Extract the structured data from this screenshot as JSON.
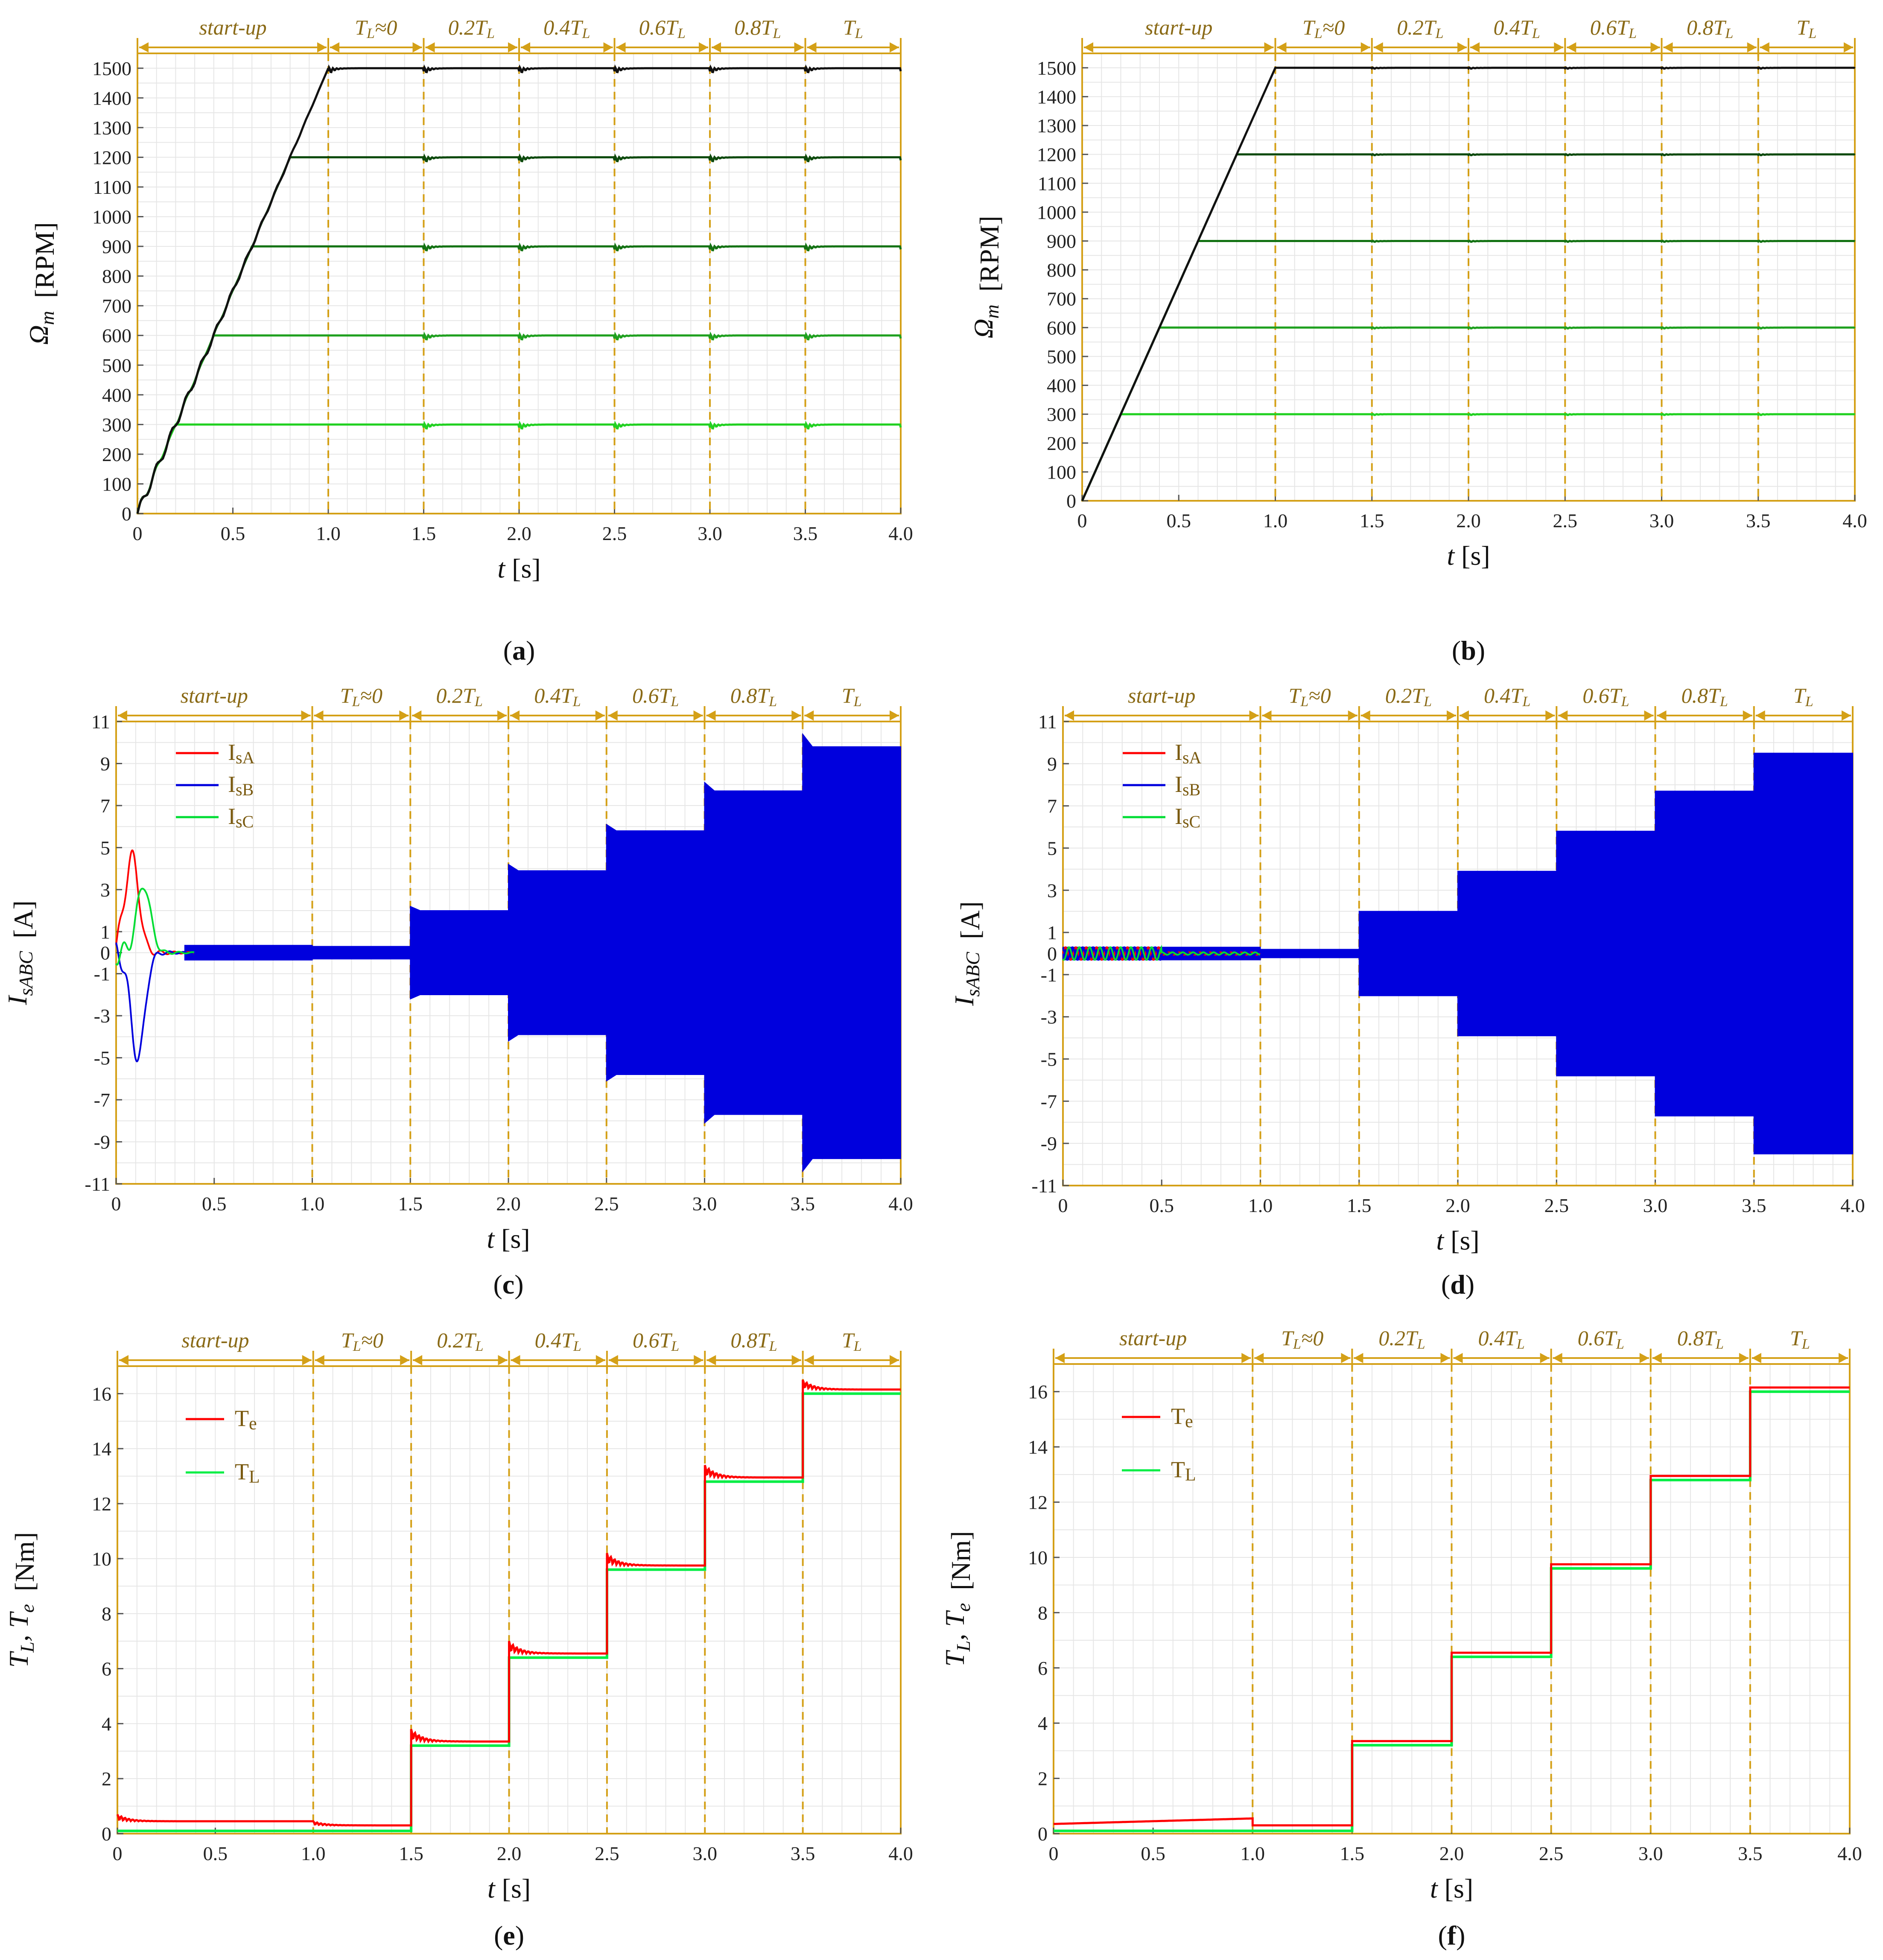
{
  "figure": {
    "phase_color": "#D4A017",
    "grid_color": "#e6e6e6"
  },
  "chart_data": [
    {
      "id": "a",
      "caption_letter": "a",
      "type": "line",
      "title": "",
      "xlabel": "t [s]",
      "ylabel": "Ω_m [RPM]",
      "xlim": [
        0,
        4.0
      ],
      "ylim": [
        0,
        1550
      ],
      "xticks": [
        "0",
        "0.5",
        "1.0",
        "1.5",
        "2.0",
        "2.5",
        "3.0",
        "3.5",
        "4.0"
      ],
      "yticks": [
        "0",
        "100",
        "200",
        "300",
        "400",
        "500",
        "600",
        "700",
        "800",
        "900",
        "1000",
        "1100",
        "1200",
        "1300",
        "1400",
        "1500"
      ],
      "phases": [
        {
          "label": "start-up",
          "x0": 0.0,
          "x1": 1.0
        },
        {
          "label": "TL≈0",
          "x0": 1.0,
          "x1": 1.5
        },
        {
          "label": "0.2TL",
          "x0": 1.5,
          "x1": 2.0
        },
        {
          "label": "0.4TL",
          "x0": 2.0,
          "x1": 2.5
        },
        {
          "label": "0.6TL",
          "x0": 2.5,
          "x1": 3.0
        },
        {
          "label": "0.8TL",
          "x0": 3.0,
          "x1": 3.5
        },
        {
          "label": "TL",
          "x0": 3.5,
          "x1": 4.0
        }
      ],
      "series": [
        {
          "name": "300 RPM",
          "setpoint": 300,
          "ramp_end": 0.2,
          "color": "#22d122"
        },
        {
          "name": "600 RPM",
          "setpoint": 600,
          "ramp_end": 0.4,
          "color": "#1fa01f"
        },
        {
          "name": "900 RPM",
          "setpoint": 900,
          "ramp_end": 0.6,
          "color": "#137213"
        },
        {
          "name": "1200 RPM",
          "setpoint": 1200,
          "ramp_end": 0.8,
          "color": "#0d4a0d"
        },
        {
          "name": "1500 RPM",
          "setpoint": 1500,
          "ramp_end": 1.0,
          "color": "#111111"
        }
      ]
    },
    {
      "id": "b",
      "caption_letter": "b",
      "type": "line",
      "title": "",
      "xlabel": "t [s]",
      "ylabel": "Ω_m [RPM]",
      "xlim": [
        0,
        4.0
      ],
      "ylim": [
        0,
        1550
      ],
      "xticks": [
        "0",
        "0.5",
        "1.0",
        "1.5",
        "2.0",
        "2.5",
        "3.0",
        "3.5",
        "4.0"
      ],
      "yticks": [
        "0",
        "100",
        "200",
        "300",
        "400",
        "500",
        "600",
        "700",
        "800",
        "900",
        "1000",
        "1100",
        "1200",
        "1300",
        "1400",
        "1500"
      ],
      "phases": [
        {
          "label": "start-up",
          "x0": 0.0,
          "x1": 1.0
        },
        {
          "label": "TL≈0",
          "x0": 1.0,
          "x1": 1.5
        },
        {
          "label": "0.2TL",
          "x0": 1.5,
          "x1": 2.0
        },
        {
          "label": "0.4TL",
          "x0": 2.0,
          "x1": 2.5
        },
        {
          "label": "0.6TL",
          "x0": 2.5,
          "x1": 3.0
        },
        {
          "label": "0.8TL",
          "x0": 3.0,
          "x1": 3.5
        },
        {
          "label": "TL",
          "x0": 3.5,
          "x1": 4.0
        }
      ],
      "series": [
        {
          "name": "300 RPM",
          "setpoint": 300,
          "ramp_end": 0.2,
          "color": "#22d122"
        },
        {
          "name": "600 RPM",
          "setpoint": 600,
          "ramp_end": 0.4,
          "color": "#1fa01f"
        },
        {
          "name": "900 RPM",
          "setpoint": 900,
          "ramp_end": 0.6,
          "color": "#137213"
        },
        {
          "name": "1200 RPM",
          "setpoint": 1200,
          "ramp_end": 0.8,
          "color": "#0d4a0d"
        },
        {
          "name": "1500 RPM",
          "setpoint": 1500,
          "ramp_end": 1.0,
          "color": "#111111"
        }
      ]
    },
    {
      "id": "c",
      "caption_letter": "c",
      "type": "line",
      "title": "",
      "xlabel": "t [s]",
      "ylabel": "I_sABC [A]",
      "xlim": [
        0,
        4.0
      ],
      "ylim": [
        -11,
        11
      ],
      "xticks": [
        "0",
        "0.5",
        "1.0",
        "1.5",
        "2.0",
        "2.5",
        "3.0",
        "3.5",
        "4.0"
      ],
      "yticks": [
        "11",
        "9",
        "7",
        "5",
        "3",
        "1",
        "0",
        "-1",
        "-3",
        "-5",
        "-7",
        "-9",
        "-11"
      ],
      "legend": [
        {
          "label": "IsA",
          "color": "#ff0000"
        },
        {
          "label": "IsB",
          "color": "#0000dd"
        },
        {
          "label": "IsC",
          "color": "#00dd33"
        }
      ],
      "phases": [
        {
          "label": "start-up",
          "x0": 0.0,
          "x1": 1.0
        },
        {
          "label": "TL≈0",
          "x0": 1.0,
          "x1": 1.5
        },
        {
          "label": "0.2TL",
          "x0": 1.5,
          "x1": 2.0
        },
        {
          "label": "0.4TL",
          "x0": 2.0,
          "x1": 2.5
        },
        {
          "label": "0.6TL",
          "x0": 2.5,
          "x1": 3.0
        },
        {
          "label": "0.8TL",
          "x0": 3.0,
          "x1": 3.5
        },
        {
          "label": "TL",
          "x0": 3.5,
          "x1": 4.0
        }
      ],
      "envelope": [
        {
          "x0": 0.35,
          "x1": 1.0,
          "amp": 0.35
        },
        {
          "x0": 1.0,
          "x1": 1.5,
          "amp": 0.3
        },
        {
          "x0": 1.5,
          "x1": 2.0,
          "amp": 2.0
        },
        {
          "x0": 2.0,
          "x1": 2.5,
          "amp": 3.9
        },
        {
          "x0": 2.5,
          "x1": 3.0,
          "amp": 5.8
        },
        {
          "x0": 3.0,
          "x1": 3.5,
          "amp": 7.7
        },
        {
          "x0": 3.5,
          "x1": 4.0,
          "amp": 9.8
        }
      ],
      "overshoot": [
        2.2,
        4.2,
        6.1,
        8.1,
        10.4
      ],
      "startup_peaks": {
        "IsA": 4.6,
        "IsB": -5.0,
        "IsC": 3.2
      }
    },
    {
      "id": "d",
      "caption_letter": "d",
      "type": "line",
      "title": "",
      "xlabel": "t [s]",
      "ylabel": "I_sABC [A]",
      "xlim": [
        0,
        4.0
      ],
      "ylim": [
        -11,
        11
      ],
      "xticks": [
        "0",
        "0.5",
        "1.0",
        "1.5",
        "2.0",
        "2.5",
        "3.0",
        "3.5",
        "4.0"
      ],
      "yticks": [
        "11",
        "9",
        "7",
        "5",
        "3",
        "1",
        "0",
        "-1",
        "-3",
        "-5",
        "-7",
        "-9",
        "-11"
      ],
      "legend": [
        {
          "label": "IsA",
          "color": "#ff0000"
        },
        {
          "label": "IsB",
          "color": "#0000dd"
        },
        {
          "label": "IsC",
          "color": "#00dd33"
        }
      ],
      "phases": [
        {
          "label": "start-up",
          "x0": 0.0,
          "x1": 1.0
        },
        {
          "label": "TL≈0",
          "x0": 1.0,
          "x1": 1.5
        },
        {
          "label": "0.2TL",
          "x0": 1.5,
          "x1": 2.0
        },
        {
          "label": "0.4TL",
          "x0": 2.0,
          "x1": 2.5
        },
        {
          "label": "0.6TL",
          "x0": 2.5,
          "x1": 3.0
        },
        {
          "label": "0.8TL",
          "x0": 3.0,
          "x1": 3.5
        },
        {
          "label": "TL",
          "x0": 3.5,
          "x1": 4.0
        }
      ],
      "envelope": [
        {
          "x0": 0.0,
          "x1": 1.0,
          "amp": 0.3
        },
        {
          "x0": 1.0,
          "x1": 1.5,
          "amp": 0.2
        },
        {
          "x0": 1.5,
          "x1": 2.0,
          "amp": 2.0
        },
        {
          "x0": 2.0,
          "x1": 2.5,
          "amp": 3.9
        },
        {
          "x0": 2.5,
          "x1": 3.0,
          "amp": 5.8
        },
        {
          "x0": 3.0,
          "x1": 3.5,
          "amp": 7.7
        },
        {
          "x0": 3.5,
          "x1": 4.0,
          "amp": 9.5
        }
      ]
    },
    {
      "id": "e",
      "caption_letter": "e",
      "type": "line",
      "title": "",
      "xlabel": "t [s]",
      "ylabel": "T_L, T_e [Nm]",
      "xlim": [
        0,
        4.0
      ],
      "ylim": [
        0,
        17
      ],
      "xticks": [
        "0",
        "0.5",
        "1.0",
        "1.5",
        "2.0",
        "2.5",
        "3.0",
        "3.5",
        "4.0"
      ],
      "yticks": [
        "0",
        "2",
        "4",
        "6",
        "8",
        "10",
        "12",
        "14",
        "16"
      ],
      "legend": [
        {
          "label": "Te",
          "color": "#ff0000"
        },
        {
          "label": "TL",
          "color": "#00ee44"
        }
      ],
      "phases": [
        {
          "label": "start-up",
          "x0": 0.0,
          "x1": 1.0
        },
        {
          "label": "TL≈0",
          "x0": 1.0,
          "x1": 1.5
        },
        {
          "label": "0.2TL",
          "x0": 1.5,
          "x1": 2.0
        },
        {
          "label": "0.4TL",
          "x0": 2.0,
          "x1": 2.5
        },
        {
          "label": "0.6TL",
          "x0": 2.5,
          "x1": 3.0
        },
        {
          "label": "0.8TL",
          "x0": 3.0,
          "x1": 3.5
        },
        {
          "label": "TL",
          "x0": 3.5,
          "x1": 4.0
        }
      ],
      "TL_levels": [
        0.1,
        0.1,
        3.2,
        6.4,
        9.6,
        12.8,
        16.0
      ],
      "Te_levels": [
        0.45,
        0.3,
        3.35,
        6.55,
        9.75,
        12.95,
        16.15
      ],
      "Te_peaks": [
        0.7,
        0.45,
        3.8,
        7.0,
        10.2,
        13.4,
        16.5
      ]
    },
    {
      "id": "f",
      "caption_letter": "f",
      "type": "line",
      "title": "",
      "xlabel": "t [s]",
      "ylabel": "T_L, T_e [Nm]",
      "xlim": [
        0,
        4.0
      ],
      "ylim": [
        0,
        17
      ],
      "xticks": [
        "0",
        "0.5",
        "1.0",
        "1.5",
        "2.0",
        "2.5",
        "3.0",
        "3.5",
        "4.0"
      ],
      "yticks": [
        "0",
        "2",
        "4",
        "6",
        "8",
        "10",
        "12",
        "14",
        "16"
      ],
      "legend": [
        {
          "label": "Te",
          "color": "#ff0000"
        },
        {
          "label": "TL",
          "color": "#00ee44"
        }
      ],
      "phases": [
        {
          "label": "start-up",
          "x0": 0.0,
          "x1": 1.0
        },
        {
          "label": "TL≈0",
          "x0": 1.0,
          "x1": 1.5
        },
        {
          "label": "0.2TL",
          "x0": 1.5,
          "x1": 2.0
        },
        {
          "label": "0.4TL",
          "x0": 2.0,
          "x1": 2.5
        },
        {
          "label": "0.6TL",
          "x0": 2.5,
          "x1": 3.0
        },
        {
          "label": "0.8TL",
          "x0": 3.0,
          "x1": 3.5
        },
        {
          "label": "TL",
          "x0": 3.5,
          "x1": 4.0
        }
      ],
      "TL_levels": [
        0.1,
        0.1,
        3.2,
        6.4,
        9.6,
        12.8,
        16.0
      ],
      "Te_levels": [
        0.45,
        0.3,
        3.35,
        6.55,
        9.75,
        12.95,
        16.15
      ],
      "Te_peaks": [
        0.55,
        0.3,
        3.35,
        6.55,
        9.75,
        12.95,
        16.15
      ]
    }
  ]
}
